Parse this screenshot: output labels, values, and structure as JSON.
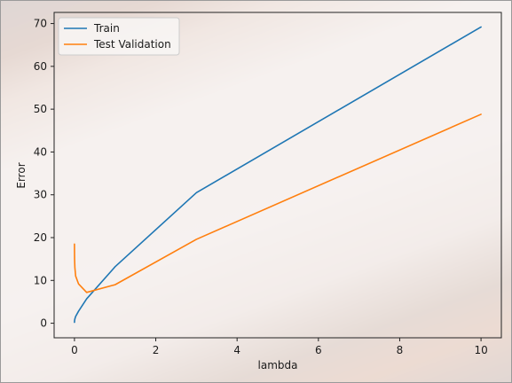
{
  "chart_data": {
    "type": "line",
    "xlabel": "lambda",
    "ylabel": "Error",
    "xlim": [
      -0.5,
      10.5
    ],
    "ylim": [
      -3.4,
      72.6
    ],
    "x_ticks": [
      0,
      2,
      4,
      6,
      8,
      10
    ],
    "y_ticks": [
      0,
      10,
      20,
      30,
      40,
      50,
      60,
      70
    ],
    "grid": false,
    "legend_position": "upper-left",
    "series": [
      {
        "name": "Train",
        "color": "#1f77b4",
        "x": [
          0,
          0.001,
          0.003,
          0.01,
          0.03,
          0.1,
          0.3,
          1,
          3,
          10
        ],
        "y": [
          0.2,
          0.3,
          0.6,
          1.0,
          1.6,
          2.8,
          5.7,
          13.2,
          30.5,
          69.2
        ]
      },
      {
        "name": "Test Validation",
        "color": "#ff7f0e",
        "x": [
          0,
          0.001,
          0.003,
          0.01,
          0.03,
          0.1,
          0.3,
          1,
          3,
          10
        ],
        "y": [
          18.5,
          17.0,
          15.0,
          13.0,
          11.0,
          9.2,
          7.2,
          9.0,
          19.6,
          48.8
        ]
      }
    ]
  }
}
